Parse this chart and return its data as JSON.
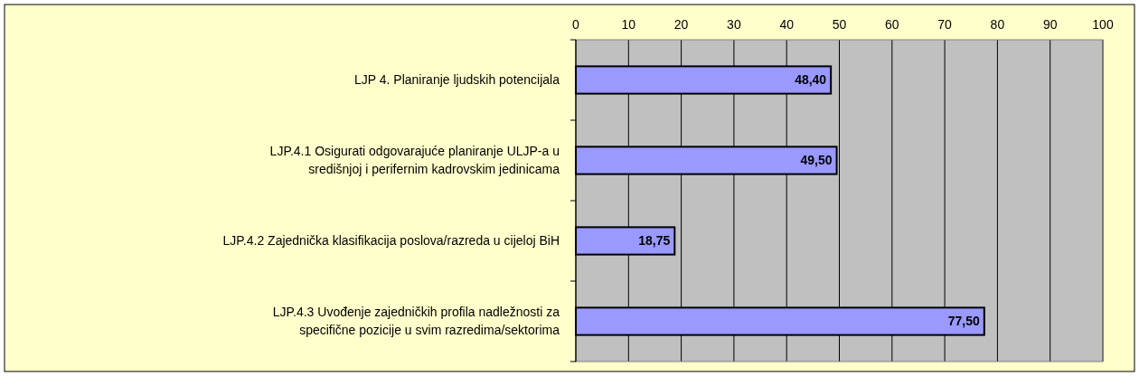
{
  "chart_data": {
    "type": "bar",
    "orientation": "horizontal",
    "categories": [
      "LJP 4. Planiranje ljudskih potencijala",
      "LJP.4.1 Osigurati odgovarajuće planiranje ULJP-a u\nsredišnjoj i perifernim kadrovskim jedinicama",
      "LJP.4.2 Zajednička klasifikacija poslova/razreda u cijeloj BiH",
      "LJP.4.3 Uvođenje zajedničkih profila nadležnosti za\nspecifične pozicije u svim razredima/sektorima"
    ],
    "values": [
      48.4,
      49.5,
      18.75,
      77.5
    ],
    "value_labels": [
      "48,40",
      "49,50",
      "18,75",
      "77,50"
    ],
    "color": "#9999ff",
    "xlim": [
      0,
      100
    ],
    "xticks": [
      0,
      10,
      20,
      30,
      40,
      50,
      60,
      70,
      80,
      90,
      100
    ],
    "grid": "x"
  }
}
